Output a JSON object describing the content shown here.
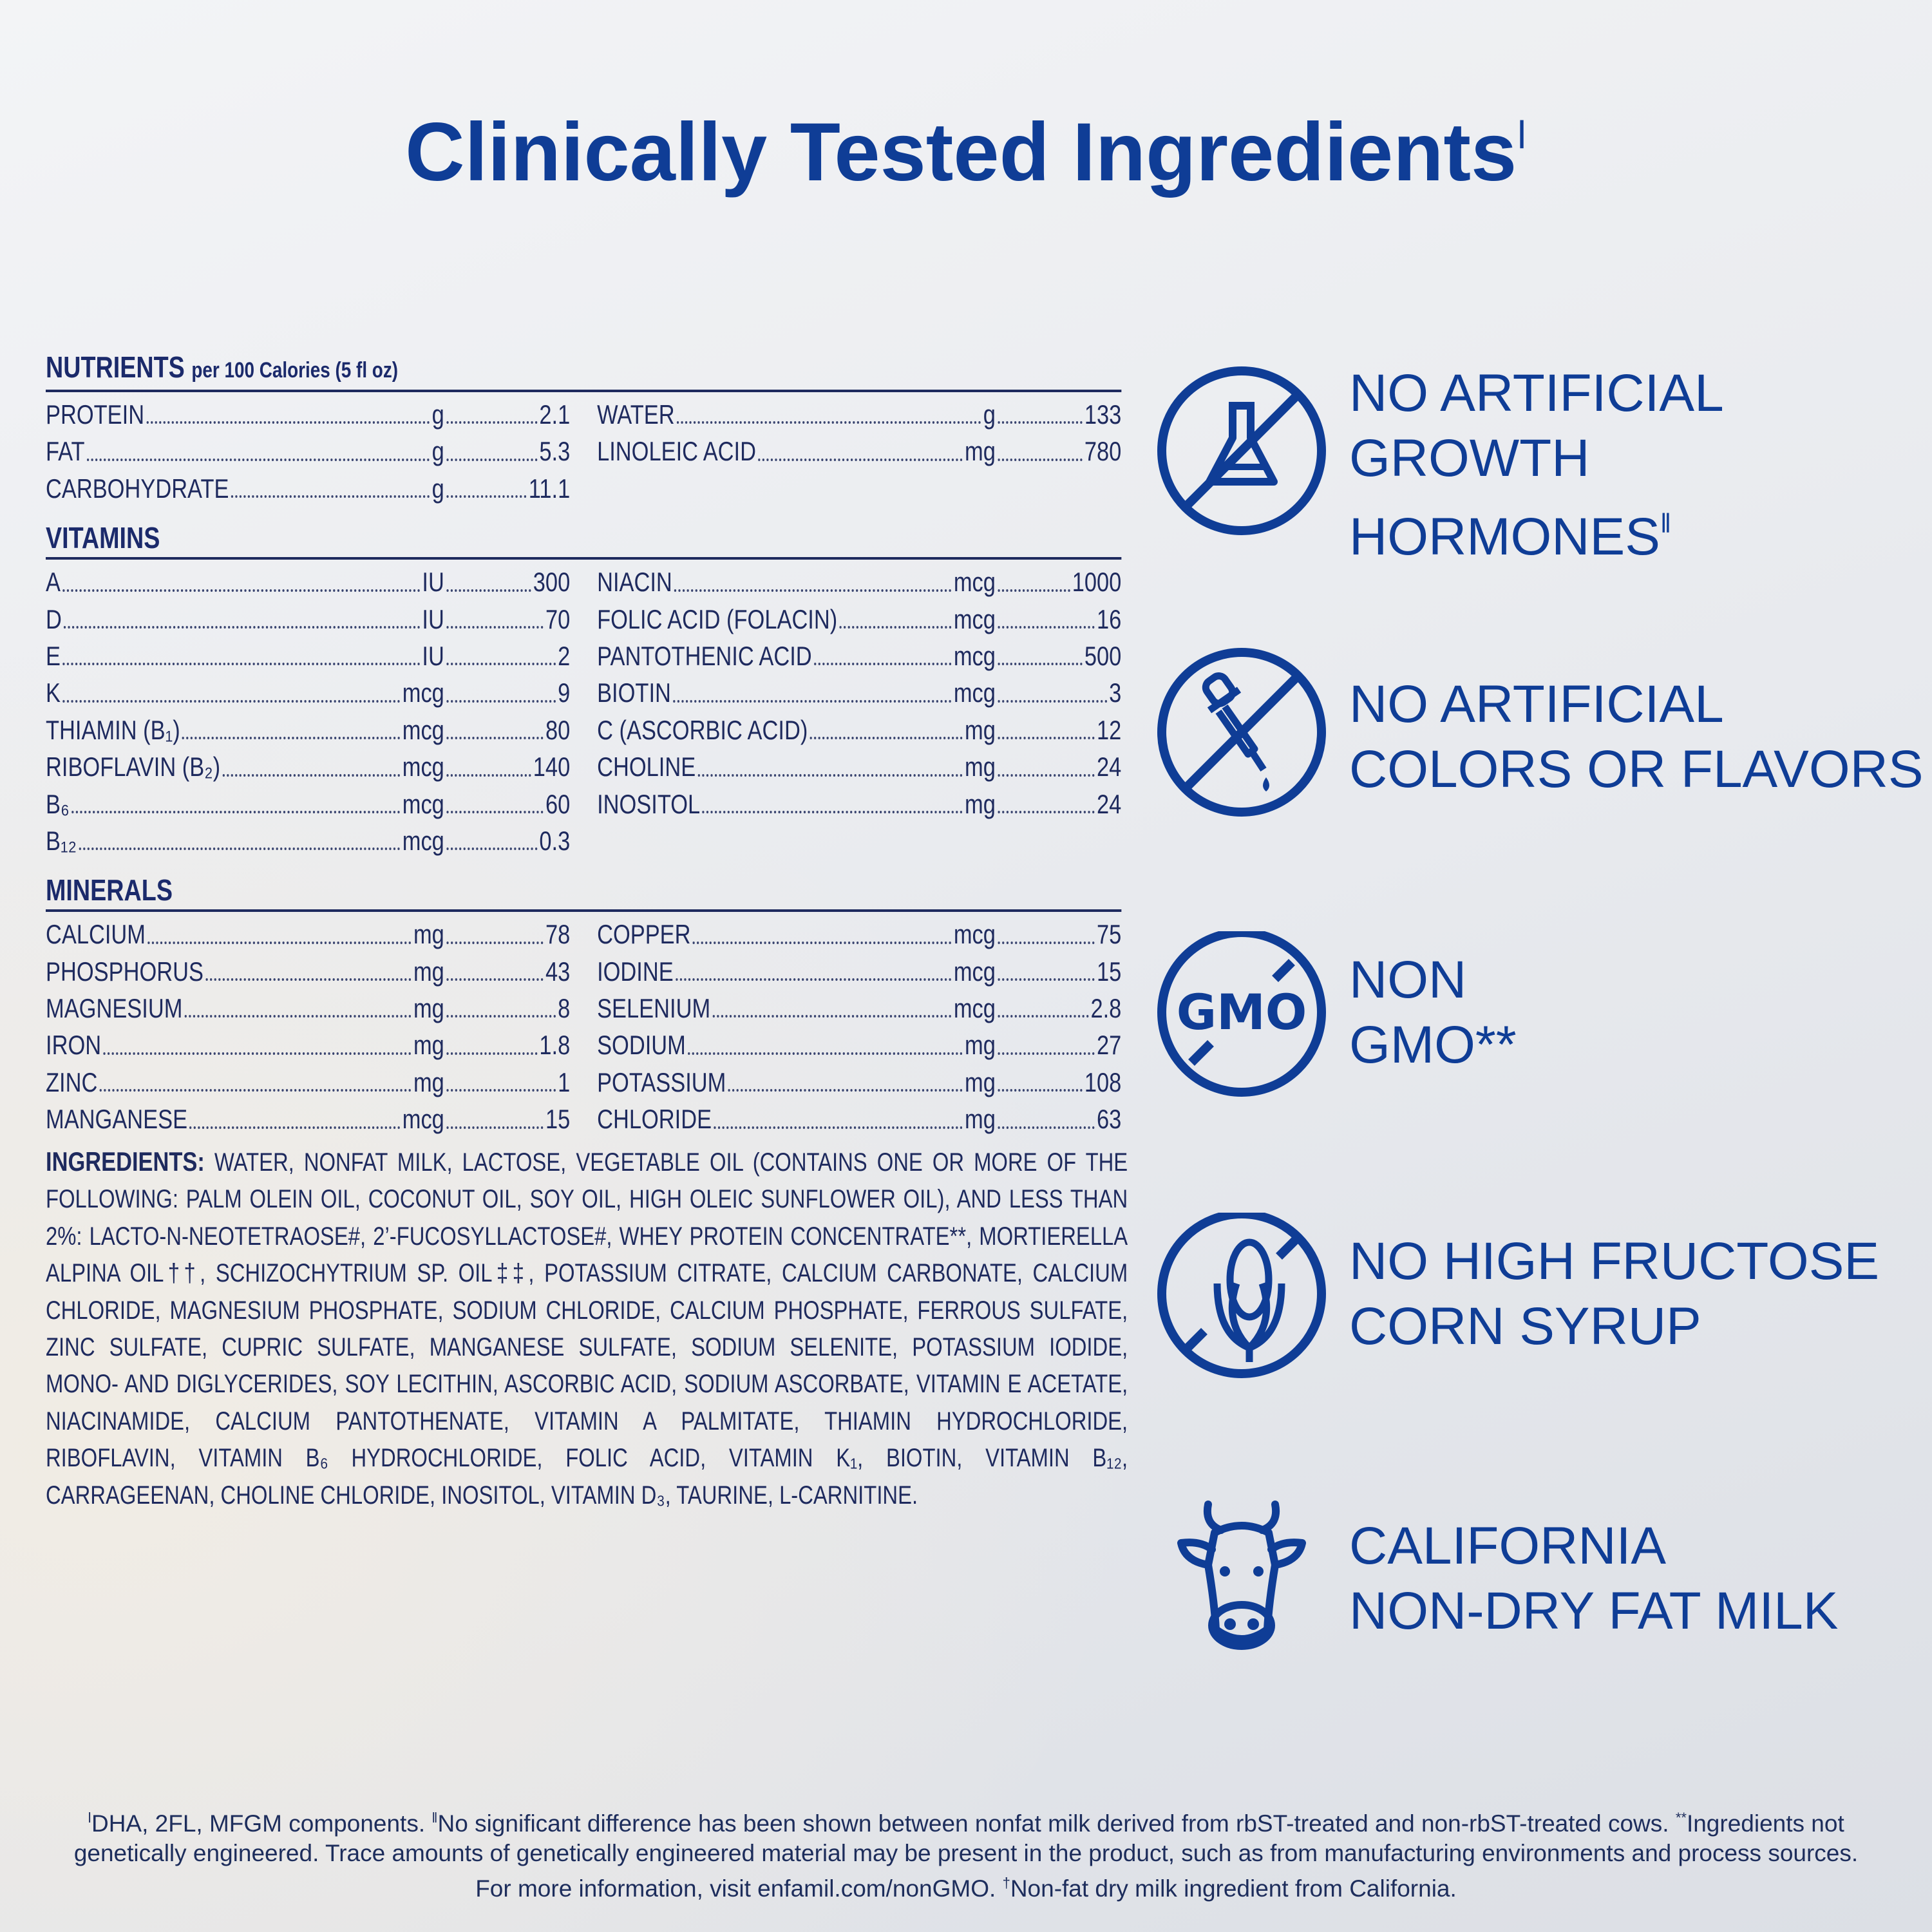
{
  "title": {
    "text": "Clinically Tested Ingredients",
    "mark": "ǀ"
  },
  "nutrition": {
    "sections": [
      {
        "heading": "NUTRIENTS",
        "subheading": "per 100 Calories (5 fl oz)",
        "left": [
          {
            "name": "PROTEIN",
            "unit": "g",
            "value": 2.1
          },
          {
            "name": "FAT",
            "unit": "g",
            "value": 5.3
          },
          {
            "name": "CARBOHYDRATE",
            "unit": "g",
            "value": 11.1
          }
        ],
        "right": [
          {
            "name": "WATER",
            "unit": "g",
            "value": 133
          },
          {
            "name": "LINOLEIC ACID",
            "unit": "mg",
            "value": 780
          }
        ]
      },
      {
        "heading": "VITAMINS",
        "left": [
          {
            "name": "A",
            "unit": "IU",
            "value": 300
          },
          {
            "name": "D",
            "unit": "IU",
            "value": 70
          },
          {
            "name": "E",
            "unit": "IU",
            "value": 2
          },
          {
            "name": "K",
            "unit": "mcg",
            "value": 9
          },
          {
            "name": "THIAMIN (B₁)",
            "unit": "mcg",
            "value": 80
          },
          {
            "name": "RIBOFLAVIN (B₂)",
            "unit": "mcg",
            "value": 140
          },
          {
            "name": "B₆",
            "unit": "mcg",
            "value": 60
          },
          {
            "name": "B₁₂",
            "unit": "mcg",
            "value": 0.3
          }
        ],
        "right": [
          {
            "name": "NIACIN",
            "unit": "mcg",
            "value": 1000
          },
          {
            "name": "FOLIC ACID (FOLACIN)",
            "unit": "mcg",
            "value": 16
          },
          {
            "name": "PANTOTHENIC ACID",
            "unit": "mcg",
            "value": 500
          },
          {
            "name": "BIOTIN",
            "unit": "mcg",
            "value": 3
          },
          {
            "name": "C (ASCORBIC ACID)",
            "unit": "mg",
            "value": 12
          },
          {
            "name": "CHOLINE",
            "unit": "mg",
            "value": 24
          },
          {
            "name": "INOSITOL",
            "unit": "mg",
            "value": 24
          }
        ]
      },
      {
        "heading": "MINERALS",
        "left": [
          {
            "name": "CALCIUM",
            "unit": "mg",
            "value": 78
          },
          {
            "name": "PHOSPHORUS",
            "unit": "mg",
            "value": 43
          },
          {
            "name": "MAGNESIUM",
            "unit": "mg",
            "value": 8
          },
          {
            "name": "IRON",
            "unit": "mg",
            "value": 1.8
          },
          {
            "name": "ZINC",
            "unit": "mg",
            "value": 1
          },
          {
            "name": "MANGANESE",
            "unit": "mcg",
            "value": 15
          }
        ],
        "right": [
          {
            "name": "COPPER",
            "unit": "mcg",
            "value": 75
          },
          {
            "name": "IODINE",
            "unit": "mcg",
            "value": 15
          },
          {
            "name": "SELENIUM",
            "unit": "mcg",
            "value": 2.8
          },
          {
            "name": "SODIUM",
            "unit": "mg",
            "value": 27
          },
          {
            "name": "POTASSIUM",
            "unit": "mg",
            "value": 108
          },
          {
            "name": "CHLORIDE",
            "unit": "mg",
            "value": 63
          }
        ]
      }
    ]
  },
  "ingredients": {
    "label": "INGREDIENTS:",
    "text": "WATER, NONFAT MILK, LACTOSE, VEGETABLE OIL (CONTAINS ONE OR MORE OF THE FOLLOWING: PALM OLEIN OIL, COCONUT OIL, SOY OIL, HIGH OLEIC SUNFLOWER OIL), AND LESS THAN 2%: LACTO-N-NEOTETRAOSE#, 2’-FUCOSYLLACTOSE#, WHEY PROTEIN CONCENTRATE**, MORTIERELLA ALPINA OIL††, SCHIZOCHYTRIUM SP. OIL‡‡, POTASSIUM CITRATE, CALCIUM CARBONATE, CALCIUM CHLORIDE, MAGNESIUM PHOSPHATE, SODIUM CHLORIDE, CALCIUM PHOSPHATE, FERROUS SULFATE, ZINC SULFATE, CUPRIC SULFATE, MANGANESE SULFATE, SODIUM SELENITE, POTASSIUM IODIDE, MONO- AND DIGLYCERIDES, SOY LECITHIN, ASCORBIC ACID, SODIUM ASCORBATE, VITAMIN E ACETATE, NIACINAMIDE, CALCIUM PANTOTHENATE, VITAMIN A PALMITATE, THIAMIN HYDROCHLORIDE, RIBOFLAVIN, VITAMIN B₆ HYDROCHLORIDE, FOLIC ACID, VITAMIN K₁, BIOTIN, VITAMIN B₁₂, CARRAGEENAN, CHOLINE CHLORIDE, INOSITOL, VITAMIN D₃, TAURINE, L-CARNITINE."
  },
  "claims": [
    {
      "lines": [
        "NO ARTIFICIAL",
        "GROWTH",
        "HORMONES"
      ],
      "mark": "ǁ"
    },
    {
      "lines": [
        "NO ARTIFICIAL",
        "COLORS OR FLAVORS"
      ]
    },
    {
      "lines": [
        "NON",
        "GMO**"
      ]
    },
    {
      "lines": [
        "NO HIGH FRUCTOSE",
        "CORN SYRUP"
      ]
    },
    {
      "lines": [
        "CALIFORNIA",
        "NON-DRY FAT MILK"
      ]
    }
  ],
  "gmo_icon": "GMO",
  "footnotes": [
    {
      "mark": "ǀ",
      "text": "DHA, 2FL, MFGM components."
    },
    {
      "mark": "ǁ",
      "text": "No significant difference has been shown between nonfat milk derived from rbST-treated and non-rbST-treated cows."
    },
    {
      "mark": "**",
      "text": "Ingredients not genetically engineered. Trace amounts of genetically engineered material may be present in the product, such as from manufacturing environments and process sources. For more information, visit enfamil.com/nonGMO."
    },
    {
      "mark": "†",
      "text": "Non-fat dry milk ingredient from California."
    }
  ]
}
